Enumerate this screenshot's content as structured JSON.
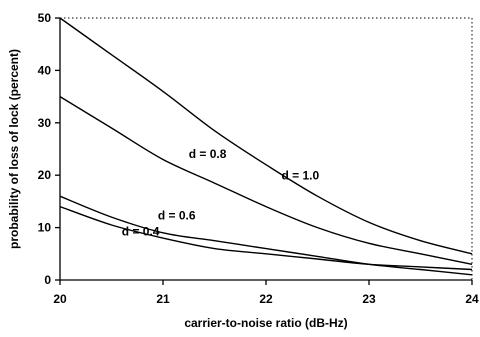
{
  "chart_data": {
    "type": "line",
    "title": "",
    "xlabel": "carrier-to-noise ratio (dB-Hz)",
    "ylabel": "probability of loss of lock (percent)",
    "xlim": [
      20,
      24
    ],
    "ylim": [
      0,
      50
    ],
    "x_ticks": [
      "20",
      "21",
      "22",
      "23",
      "24"
    ],
    "y_ticks": [
      "0",
      "10",
      "20",
      "30",
      "40",
      "50"
    ],
    "grid": false,
    "x": [
      20,
      20.5,
      21,
      21.5,
      22,
      22.5,
      23,
      23.5,
      24
    ],
    "series": [
      {
        "name": "d = 1.0",
        "values": [
          50,
          43,
          36,
          28.5,
          22,
          16,
          11,
          7.5,
          5
        ]
      },
      {
        "name": "d = 0.8",
        "values": [
          35,
          29,
          23,
          18.5,
          14,
          10,
          7,
          5,
          3
        ]
      },
      {
        "name": "d = 0.6",
        "values": [
          16,
          12,
          9,
          7.5,
          6,
          4.5,
          3,
          2,
          1
        ]
      },
      {
        "name": "d = 0.4",
        "values": [
          14,
          10.5,
          8,
          6,
          5,
          4,
          3,
          2.5,
          2
        ]
      }
    ]
  }
}
